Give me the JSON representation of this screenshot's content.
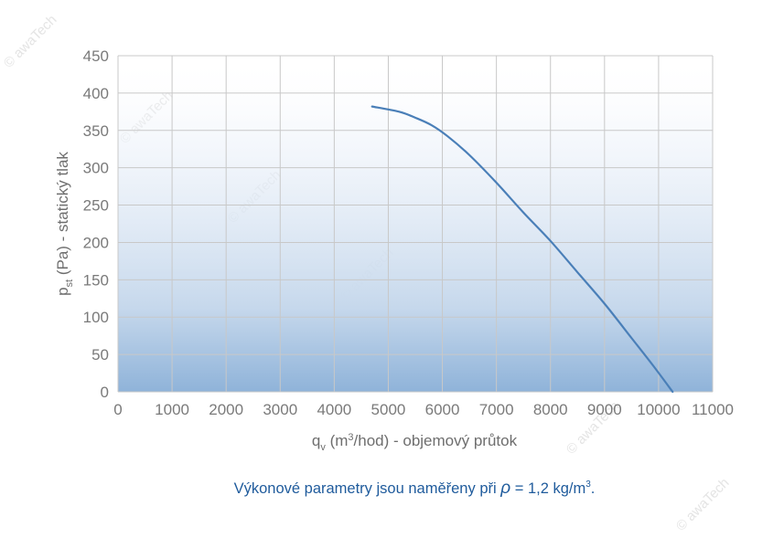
{
  "chart_data": {
    "type": "line",
    "xlabel": {
      "main": "q",
      "sub": "v",
      "unit_pre": " (m",
      "unit_sup": "3",
      "unit_post": "/hod) - objemový průtok"
    },
    "ylabel": {
      "main": "p",
      "sub": "st",
      "rest": " (Pa) - statický tlak"
    },
    "xlim": [
      0,
      11000
    ],
    "ylim": [
      0,
      450
    ],
    "xticks": [
      "0",
      "1000",
      "2000",
      "3000",
      "4000",
      "5000",
      "6000",
      "7000",
      "8000",
      "9000",
      "10000",
      "11000"
    ],
    "yticks": [
      "0",
      "50",
      "100",
      "150",
      "200",
      "250",
      "300",
      "350",
      "400",
      "450"
    ],
    "grid": true,
    "area_fill": "gradient under curve",
    "series": [
      {
        "color": "#4a7fb8",
        "x": [
          4700,
          5200,
          5500,
          5800,
          6100,
          6500,
          7000,
          7500,
          8000,
          8500,
          9000,
          9500,
          9900,
          10260
        ],
        "y": [
          382,
          375,
          367,
          357,
          342,
          317,
          280,
          240,
          202,
          160,
          118,
          72,
          35,
          0
        ]
      }
    ]
  },
  "footnote": {
    "pre": "Výkonové parametry jsou naměřeny při ",
    "rho": "ρ",
    "mid": " = 1,2 kg/m",
    "sup": "3",
    "post": "."
  },
  "watermark": "© awaTech",
  "colors": {
    "line": "#4a7fb8",
    "grid": "#c8c8c8",
    "fill_bottom": "#93b6da",
    "note": "#1f5b9c"
  }
}
